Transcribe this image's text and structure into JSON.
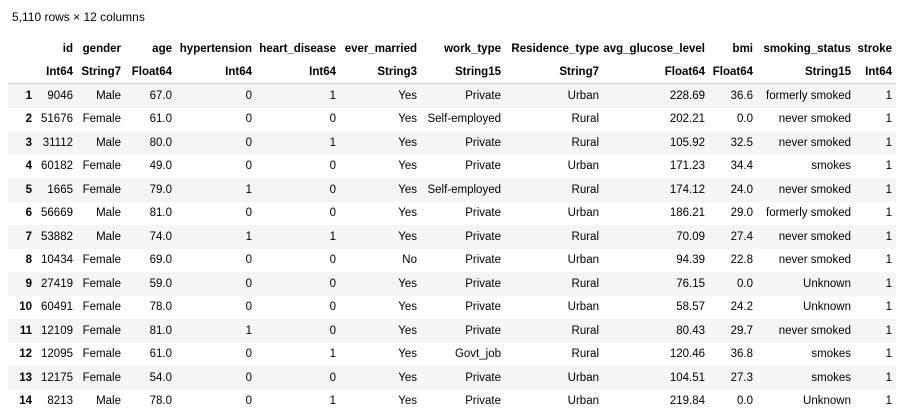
{
  "summary": "5,110 rows × 12 columns",
  "columns": [
    {
      "name": "id",
      "type": "Int64"
    },
    {
      "name": "gender",
      "type": "String7"
    },
    {
      "name": "age",
      "type": "Float64"
    },
    {
      "name": "hypertension",
      "type": "Int64"
    },
    {
      "name": "heart_disease",
      "type": "Int64"
    },
    {
      "name": "ever_married",
      "type": "String3"
    },
    {
      "name": "work_type",
      "type": "String15"
    },
    {
      "name": "Residence_type",
      "type": "String7"
    },
    {
      "name": "avg_glucose_level",
      "type": "Float64"
    },
    {
      "name": "bmi",
      "type": "Float64"
    },
    {
      "name": "smoking_status",
      "type": "String15"
    },
    {
      "name": "stroke",
      "type": "Int64"
    }
  ],
  "rows": [
    [
      "1",
      "9046",
      "Male",
      "67.0",
      "0",
      "1",
      "Yes",
      "Private",
      "Urban",
      "228.69",
      "36.6",
      "formerly smoked",
      "1"
    ],
    [
      "2",
      "51676",
      "Female",
      "61.0",
      "0",
      "0",
      "Yes",
      "Self-employed",
      "Rural",
      "202.21",
      "0.0",
      "never smoked",
      "1"
    ],
    [
      "3",
      "31112",
      "Male",
      "80.0",
      "0",
      "1",
      "Yes",
      "Private",
      "Rural",
      "105.92",
      "32.5",
      "never smoked",
      "1"
    ],
    [
      "4",
      "60182",
      "Female",
      "49.0",
      "0",
      "0",
      "Yes",
      "Private",
      "Urban",
      "171.23",
      "34.4",
      "smokes",
      "1"
    ],
    [
      "5",
      "1665",
      "Female",
      "79.0",
      "1",
      "0",
      "Yes",
      "Self-employed",
      "Rural",
      "174.12",
      "24.0",
      "never smoked",
      "1"
    ],
    [
      "6",
      "56669",
      "Male",
      "81.0",
      "0",
      "0",
      "Yes",
      "Private",
      "Urban",
      "186.21",
      "29.0",
      "formerly smoked",
      "1"
    ],
    [
      "7",
      "53882",
      "Male",
      "74.0",
      "1",
      "1",
      "Yes",
      "Private",
      "Rural",
      "70.09",
      "27.4",
      "never smoked",
      "1"
    ],
    [
      "8",
      "10434",
      "Female",
      "69.0",
      "0",
      "0",
      "No",
      "Private",
      "Urban",
      "94.39",
      "22.8",
      "never smoked",
      "1"
    ],
    [
      "9",
      "27419",
      "Female",
      "59.0",
      "0",
      "0",
      "Yes",
      "Private",
      "Rural",
      "76.15",
      "0.0",
      "Unknown",
      "1"
    ],
    [
      "10",
      "60491",
      "Female",
      "78.0",
      "0",
      "0",
      "Yes",
      "Private",
      "Urban",
      "58.57",
      "24.2",
      "Unknown",
      "1"
    ],
    [
      "11",
      "12109",
      "Female",
      "81.0",
      "1",
      "0",
      "Yes",
      "Private",
      "Rural",
      "80.43",
      "29.7",
      "never smoked",
      "1"
    ],
    [
      "12",
      "12095",
      "Female",
      "61.0",
      "0",
      "1",
      "Yes",
      "Govt_job",
      "Rural",
      "120.46",
      "36.8",
      "smokes",
      "1"
    ],
    [
      "13",
      "12175",
      "Female",
      "54.0",
      "0",
      "0",
      "Yes",
      "Private",
      "Urban",
      "104.51",
      "27.3",
      "smokes",
      "1"
    ],
    [
      "14",
      "8213",
      "Male",
      "78.0",
      "0",
      "1",
      "Yes",
      "Private",
      "Urban",
      "219.84",
      "0.0",
      "Unknown",
      "1"
    ]
  ]
}
